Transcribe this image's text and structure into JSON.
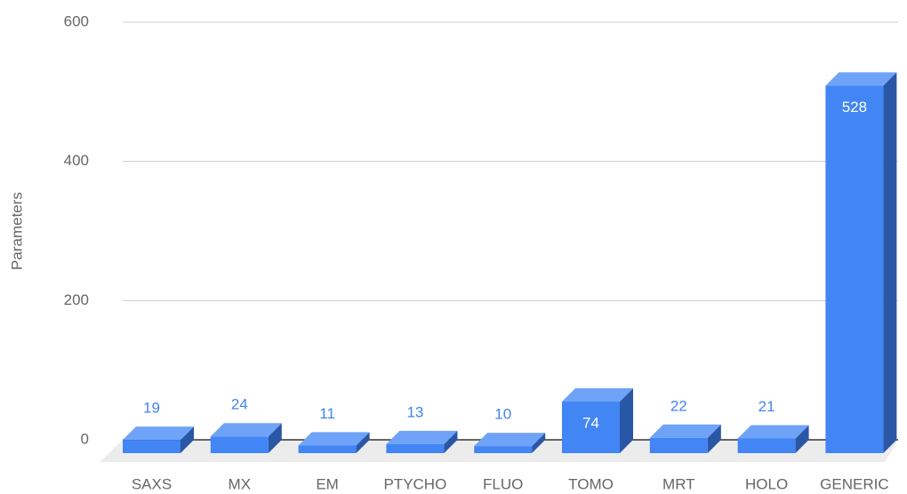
{
  "chart_data": {
    "type": "bar",
    "y_label": "Parameters",
    "categories": [
      "SAXS",
      "MX",
      "EM",
      "PTYCHO",
      "FLUO",
      "TOMO",
      "MRT",
      "HOLO",
      "GENERIC"
    ],
    "values": [
      19,
      24,
      11,
      13,
      10,
      74,
      22,
      21,
      528
    ],
    "color": "#4285f4",
    "ylim": [
      0,
      600
    ],
    "yticks": [
      0,
      200,
      400,
      600
    ],
    "grid": true
  }
}
